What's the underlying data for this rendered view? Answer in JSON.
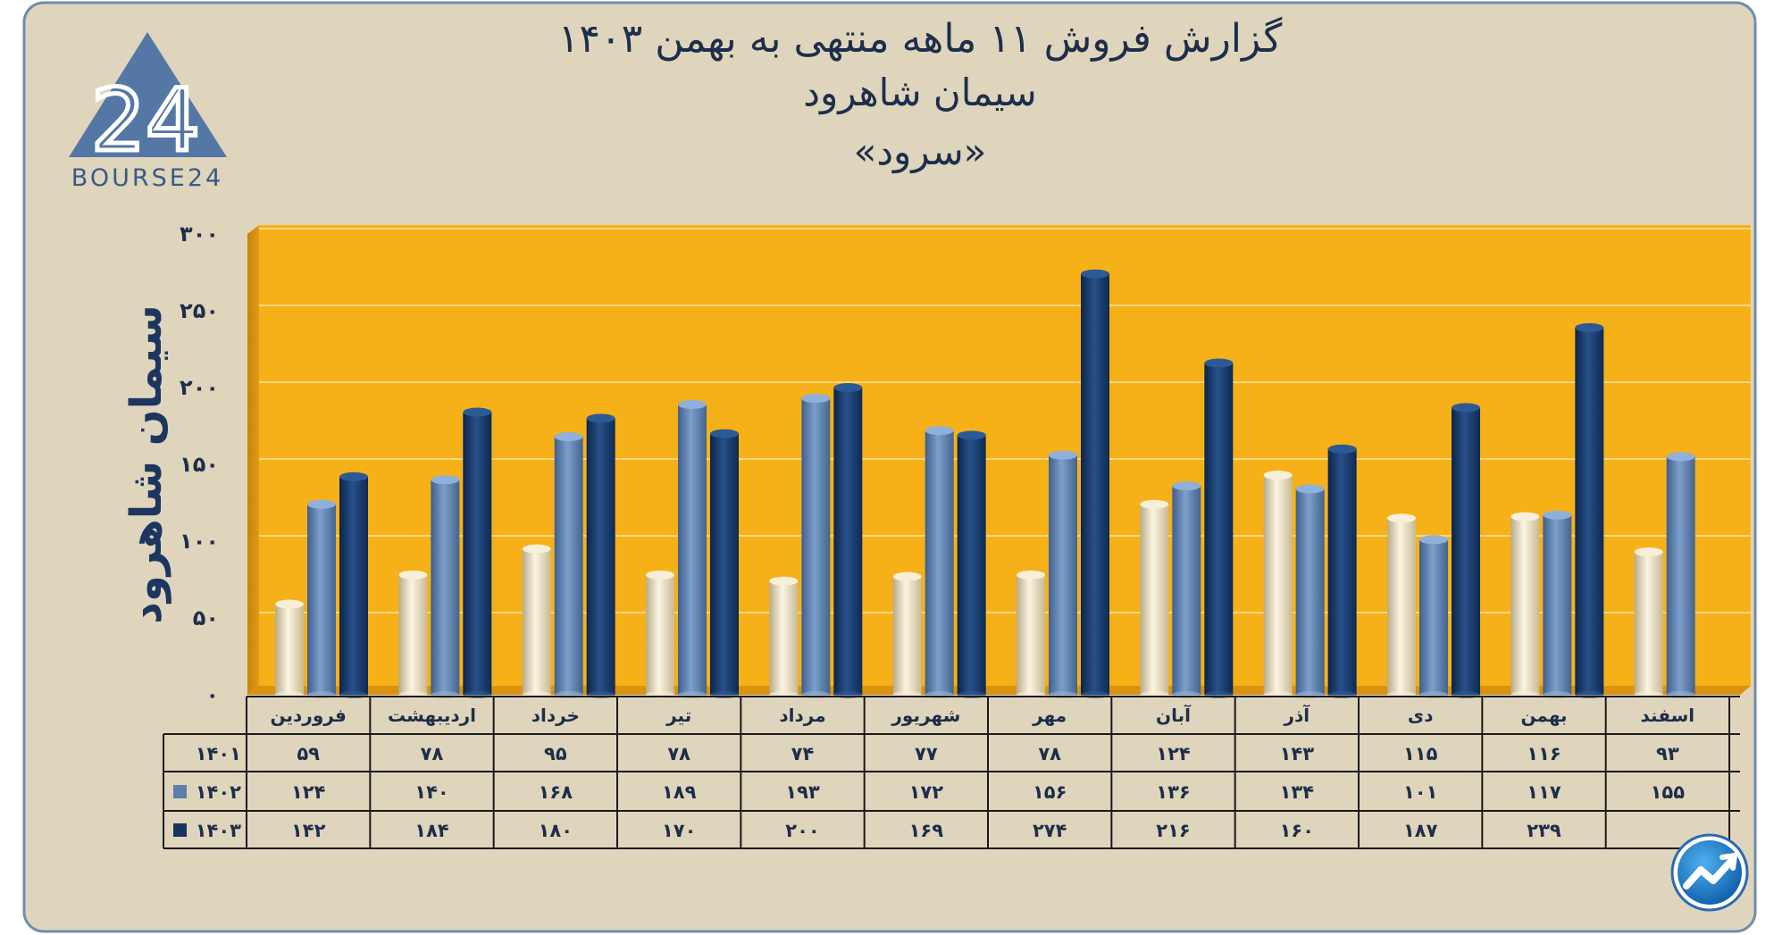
{
  "titles": {
    "line1": "گزارش  فروش ۱۱ ماهه منتهی به بهمن ۱۴۰۳",
    "line2": "سیمان شاهرود",
    "line3": "«سرود»"
  },
  "logo": {
    "mark": "24",
    "text": "BOURSE24"
  },
  "colors": {
    "frame_bg": "#dfd5bc",
    "frame_border": "#6f8fab",
    "plot_bg": "#f6b118",
    "series_1401": "#ece2c6",
    "series_1402": "#5b7fad",
    "series_1403": "#15345f",
    "text_dark": "#1d2e4a"
  },
  "chart_data": {
    "type": "bar",
    "title": "گزارش  فروش ۱۱ ماهه منتهی به بهمن ۱۴۰۳",
    "subtitle": "سیمان شاهرود «سرود»",
    "xlabel": "",
    "ylabel": "سیمان شاهرود",
    "ylim": [
      0,
      300
    ],
    "yticks": [
      0,
      50,
      100,
      150,
      200,
      250,
      300
    ],
    "ytick_labels": [
      "۰",
      "۵۰",
      "۱۰۰",
      "۱۵۰",
      "۲۰۰",
      "۲۵۰",
      "۳۰۰"
    ],
    "grid": true,
    "categories": [
      "فروردین",
      "اردیبهشت",
      "خرداد",
      "تیر",
      "مرداد",
      "شهریور",
      "مهر",
      "آبان",
      "آذر",
      "دی",
      "بهمن",
      "اسفند"
    ],
    "series": [
      {
        "name": "1401",
        "label": "۱۴۰۱",
        "values": [
          59,
          78,
          95,
          78,
          74,
          77,
          78,
          124,
          143,
          115,
          116,
          93
        ],
        "labels": [
          "۵۹",
          "۷۸",
          "۹۵",
          "۷۸",
          "۷۴",
          "۷۷",
          "۷۸",
          "۱۲۴",
          "۱۴۳",
          "۱۱۵",
          "۱۱۶",
          "۹۳"
        ]
      },
      {
        "name": "1402",
        "label": "۱۴۰۲",
        "values": [
          124,
          140,
          168,
          189,
          193,
          172,
          156,
          136,
          134,
          101,
          117,
          155
        ],
        "labels": [
          "۱۲۴",
          "۱۴۰",
          "۱۶۸",
          "۱۸۹",
          "۱۹۳",
          "۱۷۲",
          "۱۵۶",
          "۱۳۶",
          "۱۳۴",
          "۱۰۱",
          "۱۱۷",
          "۱۵۵"
        ]
      },
      {
        "name": "1403",
        "label": "۱۴۰۳",
        "values": [
          142,
          184,
          180,
          170,
          200,
          169,
          274,
          216,
          160,
          187,
          239,
          null
        ],
        "labels": [
          "۱۴۲",
          "۱۸۴",
          "۱۸۰",
          "۱۷۰",
          "۲۰۰",
          "۱۶۹",
          "۲۷۴",
          "۲۱۶",
          "۱۶۰",
          "۱۸۷",
          "۲۳۹",
          ""
        ]
      }
    ]
  }
}
